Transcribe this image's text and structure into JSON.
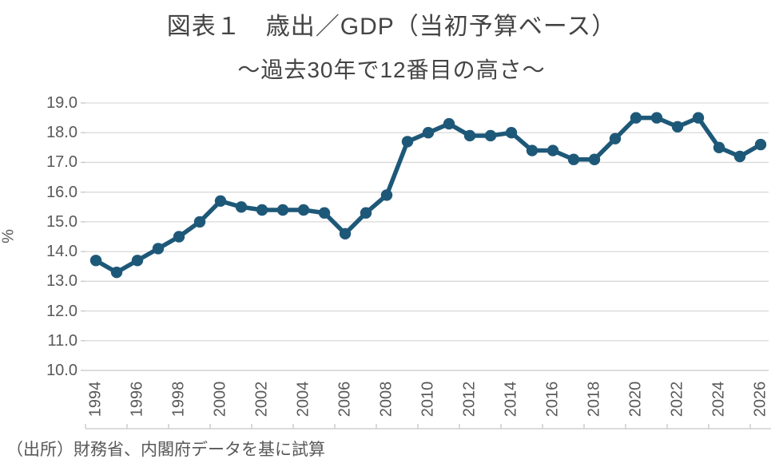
{
  "title": {
    "line1": "図表１　歳出／GDP（当初予算ベース）",
    "line2": "～過去30年で12番目の高さ～"
  },
  "source_note": "（出所）財務省、内閣府データを基に試算",
  "chart_data": {
    "type": "line",
    "title": "図表１　歳出／GDP（当初予算ベース）",
    "subtitle": "～過去30年で12番目の高さ～",
    "ylabel": "%",
    "xlabel": "",
    "ylim": [
      10.0,
      19.0
    ],
    "ytick_step": 1.0,
    "grid": true,
    "legend": "none",
    "line_color": "#1e5878",
    "grid_color": "#d9d9d9",
    "axis_color": "#c6c6c6",
    "tick_label_color": "#595959",
    "marker": "circle",
    "x": [
      1994,
      1995,
      1996,
      1997,
      1998,
      1999,
      2000,
      2001,
      2002,
      2003,
      2004,
      2005,
      2006,
      2007,
      2008,
      2009,
      2010,
      2011,
      2012,
      2013,
      2014,
      2015,
      2016,
      2017,
      2018,
      2019,
      2020,
      2021,
      2022,
      2023,
      2024,
      2025,
      2026
    ],
    "xtick_labels": [
      "1994",
      "1996",
      "1998",
      "2000",
      "2002",
      "2004",
      "2006",
      "2008",
      "2010",
      "2012",
      "2014",
      "2016",
      "2018",
      "2020",
      "2022",
      "2024",
      "2026"
    ],
    "series": [
      {
        "name": "歳出／GDP（当初予算ベース）",
        "values": [
          13.7,
          13.3,
          13.7,
          14.1,
          14.5,
          15.0,
          15.7,
          15.5,
          15.4,
          15.4,
          15.4,
          15.3,
          14.6,
          15.3,
          15.9,
          17.7,
          18.0,
          18.3,
          17.9,
          17.9,
          18.0,
          17.4,
          17.4,
          17.1,
          17.1,
          17.8,
          18.5,
          18.5,
          18.2,
          18.5,
          17.5,
          17.2,
          17.6
        ]
      }
    ]
  }
}
